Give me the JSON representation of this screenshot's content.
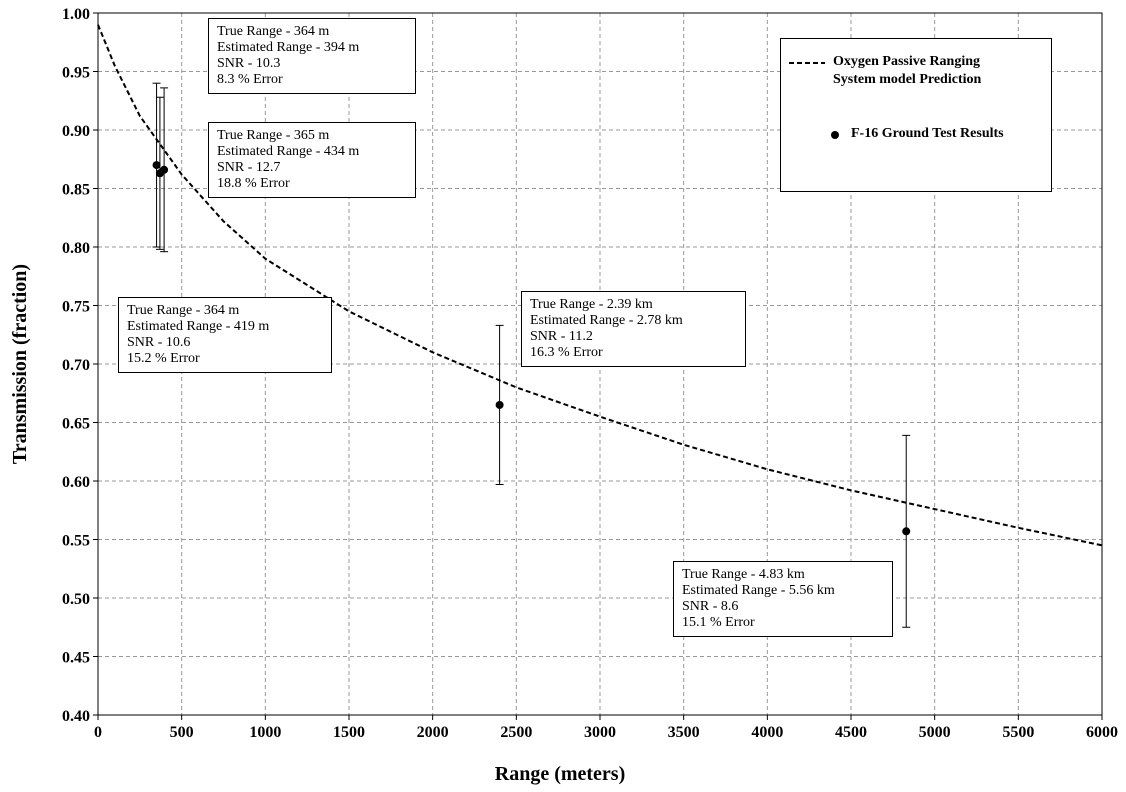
{
  "chart_data": {
    "type": "line",
    "xlabel": "Range (meters)",
    "ylabel": "Transmission (fraction)",
    "xlim": [
      0,
      6000
    ],
    "xticks": [
      0,
      500,
      1000,
      1500,
      2000,
      2500,
      3000,
      3500,
      4000,
      4500,
      5000,
      5500,
      6000
    ],
    "ylim": [
      0.4,
      1.0
    ],
    "yticks": [
      {
        "value": 0.4,
        "label": "0.40"
      },
      {
        "value": 0.45,
        "label": "0.45"
      },
      {
        "value": 0.5,
        "label": "0.50"
      },
      {
        "value": 0.55,
        "label": "0.55"
      },
      {
        "value": 0.6,
        "label": "0.60"
      },
      {
        "value": 0.65,
        "label": "0.65"
      },
      {
        "value": 0.7,
        "label": "0.70"
      },
      {
        "value": 0.75,
        "label": "0.75"
      },
      {
        "value": 0.8,
        "label": "0.80"
      },
      {
        "value": 0.85,
        "label": "0.85"
      },
      {
        "value": 0.9,
        "label": "0.90"
      },
      {
        "value": 0.95,
        "label": "0.95"
      },
      {
        "value": 1.0,
        "label": "1.00"
      }
    ],
    "grid": true,
    "series": [
      {
        "name": "Oxygen Passive Ranging System model Prediction",
        "type": "line",
        "color": "#000000",
        "dashed": true,
        "x": [
          0,
          100,
          250,
          500,
          750,
          1000,
          1500,
          2000,
          2500,
          3000,
          3500,
          4000,
          4500,
          5000,
          5500,
          6000
        ],
        "values": [
          0.99,
          0.955,
          0.912,
          0.862,
          0.822,
          0.79,
          0.745,
          0.71,
          0.68,
          0.655,
          0.631,
          0.61,
          0.592,
          0.576,
          0.56,
          0.545
        ]
      },
      {
        "name": "F-16 Ground Test Results",
        "type": "scatter",
        "color": "#000000",
        "x": [
          350,
          370,
          395,
          2400,
          4830
        ],
        "values": [
          0.87,
          0.863,
          0.866,
          0.665,
          0.557
        ],
        "errors": [
          0.07,
          0.065,
          0.07,
          0.068,
          0.082
        ]
      }
    ],
    "annotations": [
      {
        "lines": [
          "True Range - 364 m",
          "Estimated Range - 394 m",
          "SNR - 10.3",
          "8.3 % Error"
        ]
      },
      {
        "lines": [
          "True Range - 365 m",
          "Estimated Range - 434 m",
          "SNR - 12.7",
          "18.8 % Error"
        ]
      },
      {
        "lines": [
          "True Range - 364 m",
          "Estimated Range - 419 m",
          "SNR - 10.6",
          "15.2 % Error"
        ]
      },
      {
        "lines": [
          "True Range - 2.39 km",
          "Estimated Range - 2.78 km",
          "SNR - 11.2",
          "16.3 % Error"
        ]
      },
      {
        "lines": [
          "True Range - 4.83 km",
          "Estimated Range - 5.56 km",
          "SNR - 8.6",
          "15.1 % Error"
        ]
      }
    ]
  }
}
